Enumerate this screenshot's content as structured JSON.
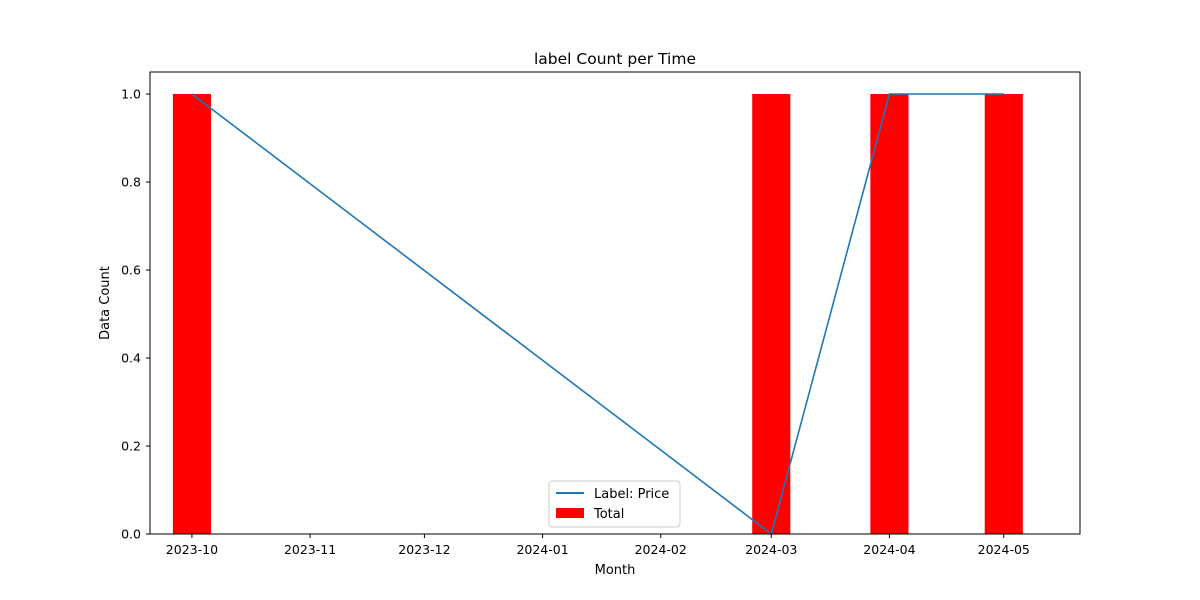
{
  "chart_data": {
    "type": "bar",
    "title": "label Count per Time",
    "xlabel": "Month",
    "ylabel": "Data Count",
    "x_ticks": [
      "2023-10",
      "2023-11",
      "2023-12",
      "2024-01",
      "2024-02",
      "2024-03",
      "2024-04",
      "2024-05"
    ],
    "y_ticks": [
      "0.0",
      "0.2",
      "0.4",
      "0.6",
      "0.8",
      "1.0"
    ],
    "ylim": [
      0,
      1.05
    ],
    "grid": false,
    "legend_position": "bottom-center",
    "series": [
      {
        "name": "Total",
        "kind": "bar",
        "color": "#ff0000",
        "x": [
          "2023-10",
          "2024-03",
          "2024-04",
          "2024-05"
        ],
        "values": [
          1,
          1,
          1,
          1
        ]
      },
      {
        "name": "Label: Price",
        "kind": "line",
        "color": "#1f77b4",
        "x": [
          "2023-10",
          "2024-03",
          "2024-04",
          "2024-05"
        ],
        "values": [
          1,
          0,
          1,
          1
        ]
      }
    ],
    "legend": [
      "Label: Price",
      "Total"
    ]
  }
}
